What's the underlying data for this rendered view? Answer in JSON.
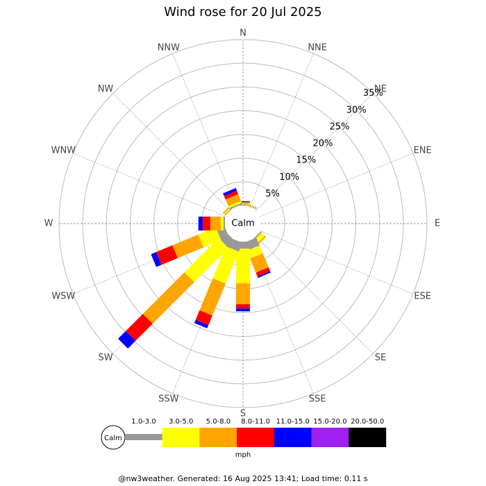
{
  "chart_data": {
    "type": "wind_rose",
    "title": "Wind rose for 20 Jul 2025",
    "categories": [
      "N",
      "NNE",
      "NE",
      "ENE",
      "E",
      "ESE",
      "SE",
      "SSE",
      "S",
      "SSW",
      "SW",
      "WSW",
      "W",
      "WNW",
      "NW",
      "NNW"
    ],
    "series": [
      {
        "name": "1.0-3.0",
        "color": "#999999",
        "values": [
          0.2,
          0.1,
          0,
          0,
          0,
          0,
          0.3,
          1.8,
          1.5,
          2,
          2,
          1.8,
          0.3,
          0,
          0.2,
          0.3
        ]
      },
      {
        "name": "3.0-5.0",
        "color": "#ffff00",
        "values": [
          0.2,
          0.1,
          0,
          0,
          0,
          0,
          1,
          1.8,
          7.3,
          7.3,
          10.2,
          4,
          0.6,
          0,
          0.3,
          0.5
        ]
      },
      {
        "name": "5.0-8.0",
        "color": "#ffa500",
        "values": [
          0.3,
          0.2,
          0,
          0,
          0,
          0,
          0.3,
          3.2,
          4.4,
          7.3,
          12.4,
          5.9,
          2.2,
          0,
          0.3,
          1.5
        ]
      },
      {
        "name": "8.0-11.0",
        "color": "#ff0000",
        "values": [
          0,
          0,
          0,
          0,
          0,
          0,
          0,
          0.9,
          0.9,
          2.2,
          5.1,
          3.7,
          1.6,
          0,
          0,
          0.8
        ]
      },
      {
        "name": "11.0-15.0",
        "color": "#0000ff",
        "values": [
          0.2,
          0,
          0,
          0,
          0,
          0,
          0,
          0.3,
          0.6,
          0.7,
          2.3,
          1.2,
          0.9,
          0,
          0,
          0.6
        ]
      },
      {
        "name": "15.0-20.0",
        "color": "#a020f0",
        "values": [
          0,
          0,
          0,
          0,
          0,
          0,
          0,
          0,
          0,
          0,
          0,
          0,
          0,
          0,
          0,
          0
        ]
      },
      {
        "name": "20.0-50.0",
        "color": "#000000",
        "values": [
          0,
          0,
          0,
          0,
          0,
          0,
          0,
          0,
          0,
          0,
          0,
          0,
          0,
          0,
          0,
          0
        ]
      }
    ],
    "rlim": [
      0,
      35
    ],
    "rticks": [
      {
        "value": 5,
        "label": "5%"
      },
      {
        "value": 10,
        "label": "10%"
      },
      {
        "value": 15,
        "label": "15%"
      },
      {
        "value": 20,
        "label": "20%"
      },
      {
        "value": 25,
        "label": "25%"
      },
      {
        "value": 30,
        "label": "30%"
      },
      {
        "value": 35,
        "label": "35%"
      }
    ],
    "calm_label": "Calm",
    "unit": "mph",
    "footer": "@nw3weather.  Generated: 16 Aug 2025 13:41; Load time: 0.11 s"
  }
}
